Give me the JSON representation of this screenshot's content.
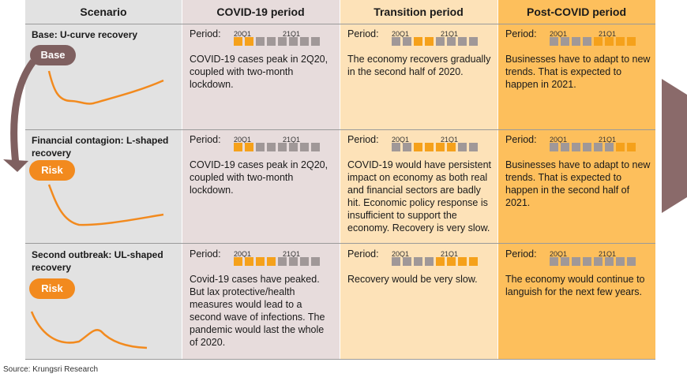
{
  "headers": {
    "scenario": "Scenario",
    "covid": "COVID-19 period",
    "transition": "Transition period",
    "post": "Post-COVID period"
  },
  "period_label": "Period:",
  "quarter_labels": [
    "20Q1",
    "21Q1"
  ],
  "scenarios": [
    {
      "title": "Base: U-curve recovery",
      "badge": "Base",
      "covid": {
        "quarters": [
          1,
          1,
          0,
          0,
          0,
          0,
          0,
          0
        ],
        "text": "COVID-19 cases peak in 2Q20, coupled with two-month lockdown."
      },
      "transition": {
        "quarters": [
          0,
          0,
          1,
          1,
          0,
          0,
          0,
          0
        ],
        "text": "The economy recovers gradually in the second half of 2020."
      },
      "post": {
        "quarters": [
          0,
          0,
          0,
          0,
          1,
          1,
          1,
          1
        ],
        "text": "Businesses have to adapt to new trends. That is expected to happen in 2021."
      }
    },
    {
      "title": "Financial contagion: L-shaped recovery",
      "badge": "Risk",
      "covid": {
        "quarters": [
          1,
          1,
          0,
          0,
          0,
          0,
          0,
          0
        ],
        "text": "COVID-19 cases peak in 2Q20, coupled with two-month lockdown."
      },
      "transition": {
        "quarters": [
          0,
          0,
          1,
          1,
          1,
          1,
          0,
          0
        ],
        "text": "COVID-19 would have persistent impact on economy as both real and financial sectors are badly hit. Economic policy response is insufficient to support the economy. Recovery is very slow."
      },
      "post": {
        "quarters": [
          0,
          0,
          0,
          0,
          0,
          0,
          1,
          1
        ],
        "text": "Businesses have to adapt to new trends. That is expected to happen in the second half of 2021."
      }
    },
    {
      "title": "Second outbreak: UL-shaped recovery",
      "badge": "Risk",
      "covid": {
        "quarters": [
          1,
          1,
          1,
          1,
          0,
          0,
          0,
          0
        ],
        "text": "Covid-19 cases have peaked. But lax protective/health measures would lead to a second wave of infections. The pandemic would last the whole of 2020."
      },
      "transition": {
        "quarters": [
          0,
          0,
          0,
          0,
          1,
          1,
          1,
          1
        ],
        "text": "Recovery would be very slow."
      },
      "post": {
        "quarters": [
          0,
          0,
          0,
          0,
          0,
          0,
          0,
          0
        ],
        "text": "The economy would continue to languish for the next few years."
      }
    }
  ],
  "source": "Source: Krungsri Research",
  "colors": {
    "active_quarter": "#f5a11b",
    "inactive_quarter": "#a09898",
    "curve": "#f28a1e",
    "arrow": "#7f6060"
  }
}
